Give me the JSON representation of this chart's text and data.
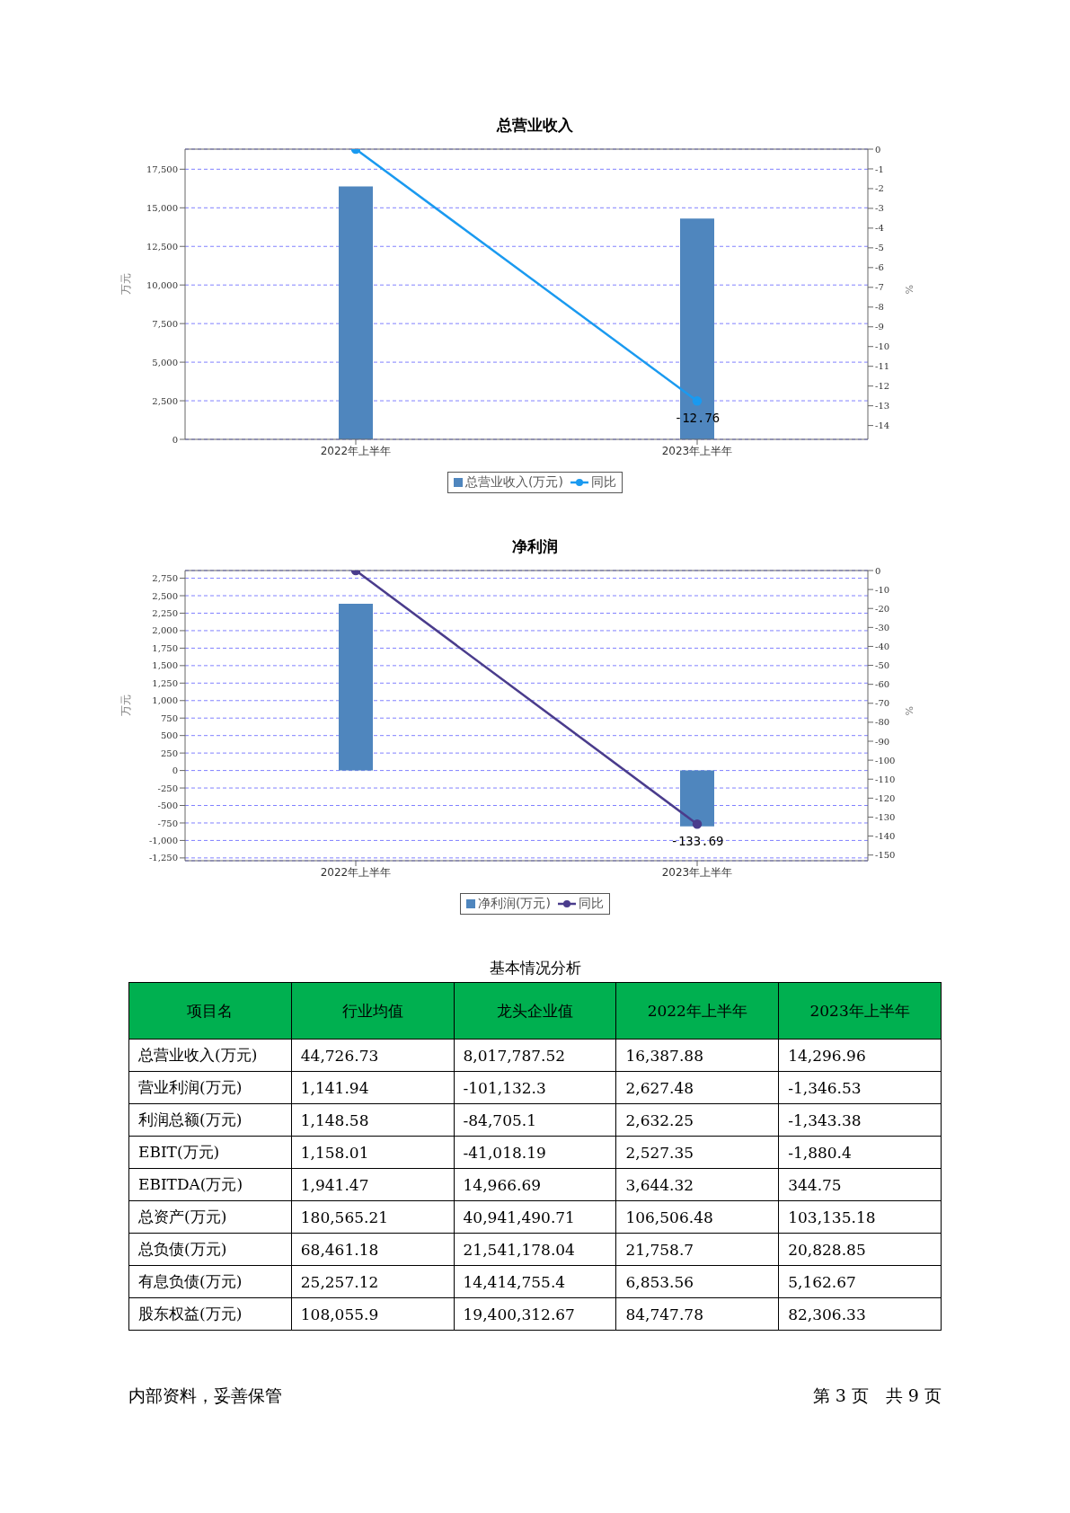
{
  "chart_data": [
    {
      "type": "bar",
      "title": "总营业收入",
      "ylabel": "万元",
      "y2label": "%",
      "categories": [
        "2022年上半年",
        "2023年上半年"
      ],
      "series": [
        {
          "name": "总营业收入(万元)",
          "type": "bar",
          "color": "#4f86be",
          "values": [
            16387.88,
            14296.96
          ]
        },
        {
          "name": "同比",
          "type": "line",
          "axis": "y2",
          "color": "#1a9af0",
          "values": [
            0,
            -12.76
          ],
          "value_labels": [
            null,
            "-12.76"
          ]
        }
      ],
      "ylim": [
        0,
        18800
      ],
      "yticks": [
        0,
        {
          "value": 2500,
          "label": "2,500"
        },
        {
          "value": 5000,
          "label": "5,000"
        },
        {
          "value": 7500,
          "label": "7,500"
        },
        {
          "value": 10000,
          "label": "10,000"
        },
        {
          "value": 12500,
          "label": "12,500"
        },
        {
          "value": 15000,
          "label": "15,000"
        },
        {
          "value": 17500,
          "label": "17,500"
        }
      ],
      "y2lim": [
        -14.7,
        0
      ],
      "y2ticks": [
        0,
        -1,
        -2,
        -3,
        -4,
        -5,
        -6,
        -7,
        -8,
        -9,
        -10,
        -11,
        -12,
        -13,
        -14
      ],
      "grid": "y",
      "legend": "bottom",
      "marker": "circle"
    },
    {
      "type": "bar",
      "title": "净利润",
      "ylabel": "万元",
      "y2label": "%",
      "categories": [
        "2022年上半年",
        "2023年上半年"
      ],
      "series": [
        {
          "name": "净利润(万元)",
          "type": "bar",
          "color": "#4f86be",
          "values": [
            2384,
            -800
          ]
        },
        {
          "name": "同比",
          "type": "line",
          "axis": "y2",
          "color": "#4a3c8c",
          "values": [
            0,
            -133.69
          ],
          "value_labels": [
            null,
            "-133.69"
          ]
        }
      ],
      "ylim": [
        -1290,
        2860
      ],
      "yticks": [
        {
          "value": -1250,
          "label": "-1,250"
        },
        {
          "value": -1000,
          "label": "-1,000"
        },
        -750,
        -500,
        -250,
        0,
        250,
        500,
        750,
        {
          "value": 1000,
          "label": "1,000"
        },
        {
          "value": 1250,
          "label": "1,250"
        },
        {
          "value": 1500,
          "label": "1,500"
        },
        {
          "value": 1750,
          "label": "1,750"
        },
        {
          "value": 2000,
          "label": "2,000"
        },
        {
          "value": 2250,
          "label": "2,250"
        },
        {
          "value": 2500,
          "label": "2,500"
        },
        {
          "value": 2750,
          "label": "2,750"
        }
      ],
      "y2lim": [
        -153,
        0
      ],
      "y2ticks": [
        0,
        -10,
        -20,
        -30,
        -40,
        -50,
        -60,
        -70,
        -80,
        -90,
        -100,
        -110,
        -120,
        -130,
        -140,
        -150
      ],
      "grid": "y",
      "legend": "bottom",
      "marker": "circle"
    },
    {
      "type": "other",
      "title": "基本情况分析",
      "categories": [
        "项目名",
        "行业均值",
        "龙头企业值",
        "2022年上半年",
        "2023年上半年"
      ],
      "y_categories": [
        "总营业收入(万元)",
        "营业利润(万元)",
        "利润总额(万元)",
        "EBIT(万元)",
        "EBITDA(万元)",
        "总资产(万元)",
        "总负债(万元)",
        "有息负债(万元)",
        "股东权益(万元)"
      ],
      "cell_labels": [
        [
          "44,726.73",
          "8,017,787.52",
          "16,387.88",
          "14,296.96"
        ],
        [
          "1,141.94",
          "-101,132.3",
          "2,627.48",
          "-1,346.53"
        ],
        [
          "1,148.58",
          "-84,705.1",
          "2,632.25",
          "-1,343.38"
        ],
        [
          "1,158.01",
          "-41,018.19",
          "2,527.35",
          "-1,880.4"
        ],
        [
          "1,941.47",
          "14,966.69",
          "3,644.32",
          "344.75"
        ],
        [
          "180,565.21",
          "40,941,490.71",
          "106,506.48",
          "103,135.18"
        ],
        [
          "68,461.18",
          "21,541,178.04",
          "21,758.7",
          "20,828.85"
        ],
        [
          "25,257.12",
          "14,414,755.4",
          "6,853.56",
          "5,162.67"
        ],
        [
          "108,055.9",
          "19,400,312.67",
          "84,747.78",
          "82,306.33"
        ]
      ],
      "annotations": [
        "内部资料，妥善保管",
        "第 3 页　共 9 页"
      ]
    }
  ]
}
